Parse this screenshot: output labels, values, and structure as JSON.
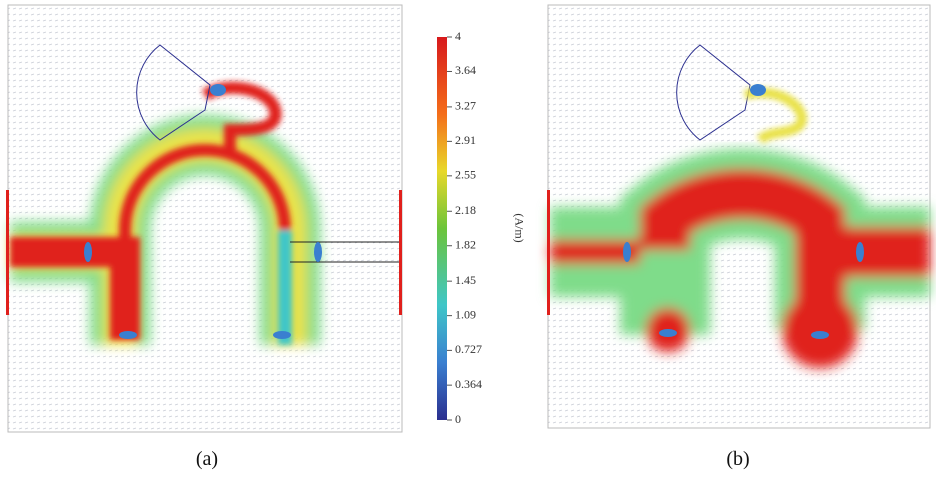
{
  "colorbar": {
    "label": "(A/m)",
    "range": [
      0,
      4
    ],
    "ticks": [
      4,
      3.64,
      3.27,
      2.91,
      2.55,
      2.18,
      1.82,
      1.45,
      1.09,
      0.727,
      0.364,
      0
    ]
  },
  "panels": [
    {
      "caption": "(a)"
    },
    {
      "caption": "(b)"
    }
  ]
}
